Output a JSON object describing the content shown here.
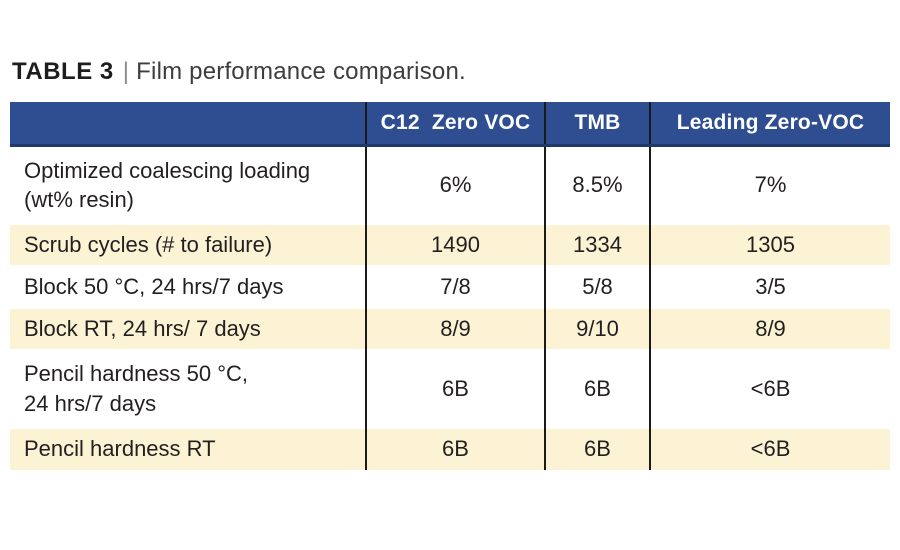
{
  "title": {
    "label": "TABLE 3",
    "separator": "|",
    "text": "Film performance comparison."
  },
  "table": {
    "columns": [
      "",
      "C12  Zero VOC",
      "TMB",
      "Leading Zero-VOC"
    ],
    "rows": [
      {
        "label": "Optimized coalescing loading\n(wt% resin)",
        "values": [
          "6%",
          "8.5%",
          "7%"
        ]
      },
      {
        "label": "Scrub cycles (# to failure)",
        "values": [
          "1490",
          "1334",
          "1305"
        ]
      },
      {
        "label": "Block 50 °C, 24 hrs/7 days",
        "values": [
          "7/8",
          "5/8",
          "3/5"
        ]
      },
      {
        "label": "Block RT, 24 hrs/ 7 days",
        "values": [
          "8/9",
          "9/10",
          "8/9"
        ]
      },
      {
        "label": "Pencil hardness 50 °C,\n24 hrs/7 days",
        "values": [
          "6B",
          "6B",
          "<6B"
        ]
      },
      {
        "label": "Pencil hardness RT",
        "values": [
          "6B",
          "6B",
          "<6B"
        ]
      }
    ],
    "colors": {
      "header_bg": "#2e4e91",
      "header_text": "#ffffff",
      "alt_row_bg": "#fbf3d4",
      "column_divider": "#1a1a1a",
      "body_text": "#231f20"
    }
  }
}
